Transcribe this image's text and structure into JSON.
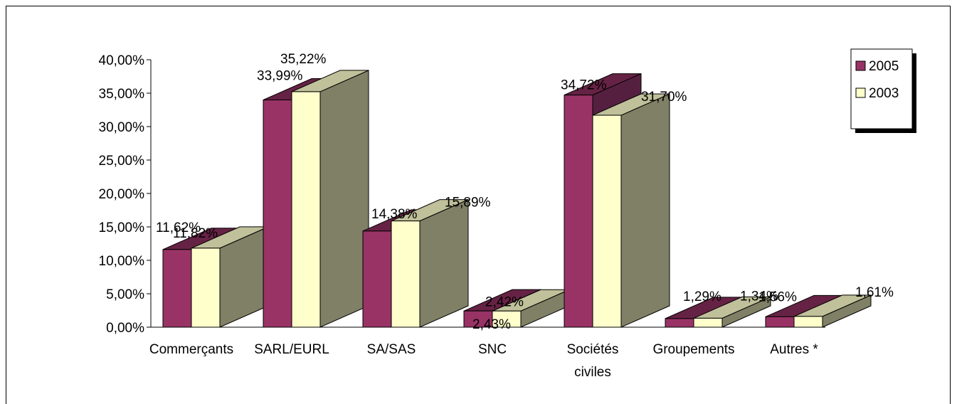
{
  "chart_data": {
    "type": "bar",
    "three_d": true,
    "categories": [
      "Commerçants",
      "SARL/EURL",
      "SA/SAS",
      "SNC",
      "Sociétés civiles",
      "Groupements",
      "Autres *"
    ],
    "series": [
      {
        "name": "2005",
        "color": "#993366",
        "values": [
          11.62,
          33.99,
          14.38,
          2.43,
          34.72,
          1.29,
          1.56
        ],
        "labels": [
          "11,62%",
          "33,99%",
          "14,38%",
          "2,43%",
          "34,72%",
          "1,29%",
          "1,56%"
        ]
      },
      {
        "name": "2003",
        "color": "#FFFFCC",
        "values": [
          11.82,
          35.22,
          15.89,
          2.42,
          31.7,
          1.34,
          1.61
        ],
        "labels": [
          "11,82%",
          "35,22%",
          "15,89%",
          "2,42%",
          "31,70%",
          "1,34%",
          "1,61%"
        ]
      }
    ],
    "ylim": [
      0,
      40
    ],
    "yticks": [
      "0,00%",
      "5,00%",
      "10,00%",
      "15,00%",
      "20,00%",
      "25,00%",
      "30,00%",
      "35,00%",
      "40,00%"
    ],
    "legend_position": "top-right",
    "grid": false
  }
}
